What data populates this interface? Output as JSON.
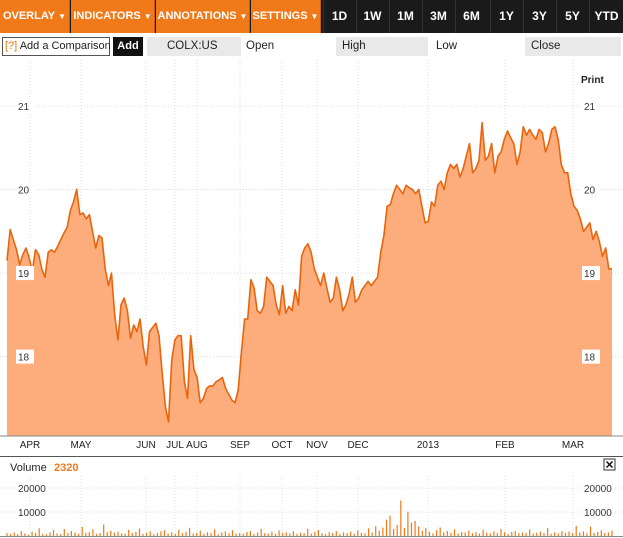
{
  "toolbar": {
    "menus": [
      {
        "label": "OVERLAY"
      },
      {
        "label": "INDICATORS"
      },
      {
        "label": "ANNOTATIONS"
      },
      {
        "label": "SETTINGS"
      }
    ],
    "caret": "▼",
    "ranges": [
      "1D",
      "1W",
      "1M",
      "3M",
      "6M",
      "1Y",
      "3Y",
      "5Y",
      "YTD"
    ],
    "active_range": "1Y"
  },
  "quote_bar": {
    "help_icon": "[?]",
    "compare_label": "Add a Comparison",
    "add_label": "Add",
    "ticker": "COLX:US",
    "open_label": "Open",
    "high_label": "High",
    "low_label": "Low",
    "close_label": "Close"
  },
  "print_label": "Print",
  "colors": {
    "accent": "#f07a1a",
    "area_fill": "#fdac7c",
    "line": "#e8650c"
  },
  "chart_data": [
    {
      "type": "area",
      "x_labels": [
        "APR",
        "MAY",
        "JUN",
        "JUL",
        "AUG",
        "SEP",
        "OCT",
        "NOV",
        "DEC",
        "2013",
        "FEB",
        "MAR"
      ],
      "y_ticks": [
        18,
        19,
        20,
        21
      ],
      "ylim": [
        17.05,
        21.55
      ],
      "grid": true,
      "values": [
        19.15,
        19.52,
        19.4,
        19.28,
        19.1,
        19.22,
        19.3,
        19.18,
        19.02,
        19.28,
        19.22,
        19.05,
        18.95,
        19.25,
        19.28,
        19.25,
        19.32,
        19.4,
        19.48,
        19.55,
        19.75,
        19.85,
        20.0,
        19.7,
        19.72,
        19.65,
        19.7,
        19.5,
        19.3,
        19.45,
        19.42,
        19.05,
        18.85,
        19.0,
        18.5,
        18.2,
        18.62,
        18.7,
        18.55,
        18.22,
        18.38,
        18.3,
        18.45,
        18.12,
        17.9,
        18.3,
        18.35,
        18.4,
        18.25,
        17.8,
        17.4,
        17.22,
        17.95,
        18.2,
        18.25,
        18.25,
        17.7,
        17.5,
        18.25,
        17.85,
        17.75,
        17.45,
        17.5,
        17.62,
        17.65,
        17.65,
        17.7,
        17.72,
        17.75,
        17.62,
        17.55,
        17.48,
        17.45,
        17.6,
        18.05,
        18.45,
        18.45,
        18.92,
        18.82,
        18.55,
        18.52,
        18.6,
        18.95,
        18.9,
        18.85,
        18.62,
        18.5,
        18.85,
        18.52,
        18.6,
        18.55,
        18.8,
        18.62,
        19.2,
        19.3,
        19.35,
        19.25,
        19.05,
        18.95,
        18.85,
        19.0,
        18.82,
        18.65,
        18.7,
        18.95,
        18.8,
        18.55,
        18.62,
        18.75,
        18.95,
        18.65,
        18.7,
        18.8,
        18.85,
        18.9,
        18.85,
        18.9,
        18.95,
        19.25,
        19.45,
        19.8,
        19.82,
        19.95,
        20.05,
        20.0,
        19.95,
        20.05,
        20.02,
        20.0,
        19.95,
        20.0,
        19.8,
        19.6,
        19.62,
        19.85,
        19.8,
        20.05,
        20.1,
        20.0,
        20.2,
        20.3,
        20.25,
        20.3,
        20.15,
        20.25,
        20.4,
        20.55,
        20.2,
        20.25,
        20.35,
        20.8,
        20.35,
        20.4,
        20.55,
        20.2,
        20.4,
        20.45,
        20.6,
        20.7,
        20.62,
        20.55,
        20.3,
        20.45,
        20.75,
        20.65,
        20.72,
        20.65,
        20.6,
        20.72,
        20.68,
        20.45,
        20.55,
        20.72,
        20.75,
        20.6,
        20.3,
        20.2,
        20.2,
        19.95,
        19.8,
        19.75,
        19.65,
        19.5,
        19.55,
        19.6,
        19.4,
        19.5,
        19.38,
        19.2,
        19.3,
        19.05,
        19.05
      ]
    },
    {
      "type": "bar",
      "title": "Volume",
      "latest_value": "2320",
      "y_ticks": [
        10000,
        20000
      ],
      "ylim": [
        0,
        25000
      ],
      "values": [
        1200,
        900,
        1500,
        800,
        2100,
        1100,
        600,
        1800,
        1300,
        3200,
        900,
        700,
        1500,
        2500,
        1100,
        800,
        2900,
        1200,
        2100,
        1400,
        900,
        3800,
        1300,
        1600,
        2800,
        900,
        1200,
        4800,
        1700,
        2200,
        1400,
        1800,
        1100,
        900,
        2600,
        1300,
        1700,
        3100,
        900,
        1400,
        2000,
        700,
        1200,
        1900,
        2400,
        1100,
        1500,
        900,
        2600,
        1200,
        1800,
        3400,
        1000,
        1300,
        2200,
        900,
        1600,
        1200,
        2800,
        700,
        1500,
        1900,
        1100,
        2400,
        1000,
        1300,
        900,
        1700,
        2100,
        800,
        1400,
        2900,
        1200,
        1000,
        1800,
        900,
        2300,
        1300,
        1600,
        1100,
        2000,
        900,
        1400,
        1200,
        3000,
        1000,
        1700,
        2500,
        1100,
        800,
        1600,
        1300,
        2100,
        900,
        1500,
        1200,
        1800,
        1000,
        2400,
        1300,
        1100,
        3200,
        1500,
        4100,
        2200,
        3500,
        6800,
        8500,
        2900,
        4600,
        14800,
        3400,
        10200,
        5600,
        6300,
        4000,
        2200,
        3300,
        1800,
        1100,
        2400,
        3600,
        1500,
        2100,
        1300,
        2800,
        1100,
        1700,
        1500,
        2300,
        1200,
        1600,
        1000,
        2600,
        1400,
        1100,
        1900,
        1200,
        3000,
        1600,
        800,
        1700,
        2100,
        1200,
        1500,
        1300,
        2700,
        1000,
        1400,
        1800,
        1200,
        3300,
        900,
        1500,
        1100,
        2000,
        1300,
        1800,
        1200,
        4200,
        1500,
        1900,
        1100,
        3900,
        1300,
        1700,
        2400,
        1300,
        1500,
        2320
      ]
    }
  ]
}
